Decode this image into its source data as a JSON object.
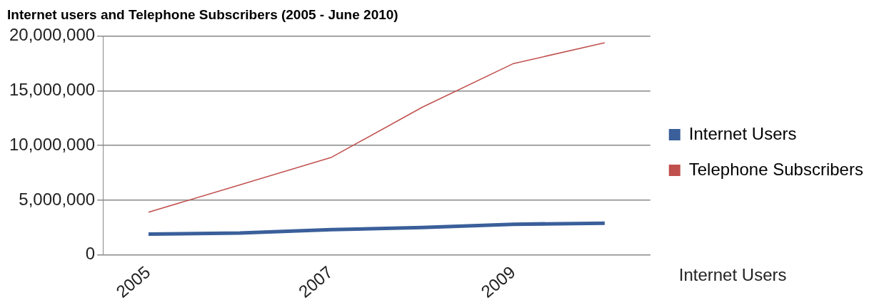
{
  "chart_data": {
    "type": "line",
    "title": "Internet users and Telephone Subscribers (2005 - June 2010)",
    "categories": [
      "2005",
      null,
      "2007",
      null,
      "2009",
      null
    ],
    "series": [
      {
        "name": "Internet Users",
        "color": "#3a5f9a",
        "values": [
          1900000,
          2000000,
          2300000,
          2500000,
          2800000,
          2900000
        ]
      },
      {
        "name": "Telephone Subscribers",
        "color": "#c0504d",
        "values": [
          3900000,
          6400000,
          8900000,
          13500000,
          17500000,
          19400000
        ]
      }
    ],
    "ylim": [
      0,
      20000000
    ],
    "yticks": [
      0,
      {
        "value": 5000000,
        "label": "5,000,000"
      },
      {
        "value": 10000000,
        "label": "10,000,000"
      },
      {
        "value": 15000000,
        "label": "15,000,000"
      },
      {
        "value": 20000000,
        "label": "20,000,000"
      }
    ],
    "grid": "y",
    "legend": "right",
    "marker": "none",
    "annotations": [
      "Internet Users"
    ]
  }
}
